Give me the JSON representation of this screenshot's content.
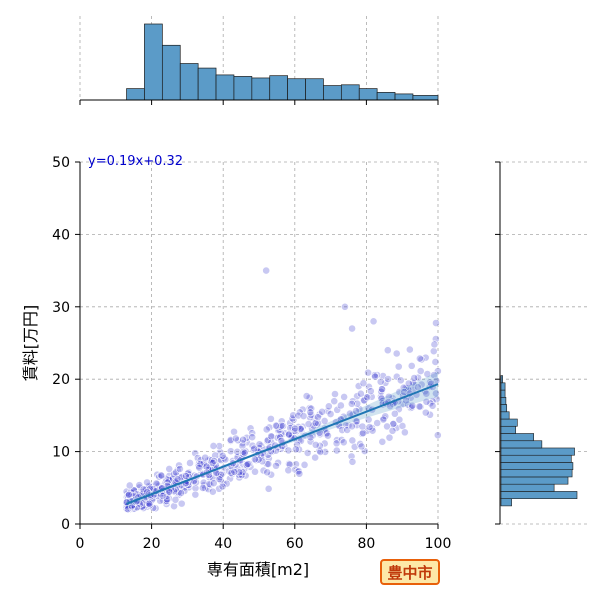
{
  "chart_data": [
    {
      "type": "scatter",
      "role": "main",
      "xlabel": "専有面積[m2]",
      "ylabel": "賃料[万円]",
      "xlim": [
        0,
        100
      ],
      "ylim": [
        0,
        50
      ],
      "xticks": [
        0,
        20,
        40,
        60,
        80,
        100
      ],
      "yticks": [
        0,
        10,
        20,
        30,
        40,
        50
      ],
      "grid": true,
      "regression": {
        "slope": 0.19,
        "intercept": 0.32,
        "label": "y=0.19x+0.32",
        "x_range": [
          13,
          100
        ]
      },
      "point_color": "#3a3ad0",
      "line_color": "#1f77b4",
      "notable_points": [
        [
          52,
          35
        ],
        [
          74,
          30
        ],
        [
          76,
          27
        ],
        [
          82,
          28
        ],
        [
          99,
          24.8
        ],
        [
          13,
          3
        ]
      ]
    },
    {
      "type": "bar",
      "role": "x-marginal-histogram",
      "bin_edges": [
        13,
        18,
        23,
        28,
        33,
        38,
        43,
        48,
        53,
        58,
        63,
        68,
        73,
        78,
        83,
        88,
        93,
        100
      ],
      "values": [
        0.15,
        1.0,
        0.72,
        0.48,
        0.42,
        0.33,
        0.31,
        0.29,
        0.32,
        0.28,
        0.28,
        0.19,
        0.2,
        0.15,
        0.1,
        0.08,
        0.06
      ],
      "color": "#5b9bc8"
    },
    {
      "type": "bar",
      "role": "y-marginal-histogram",
      "orientation": "horizontal",
      "bin_edges": [
        2.5,
        3.5,
        4.5,
        5.5,
        6.5,
        7.5,
        8.5,
        9.5,
        10.5,
        11.5,
        12.5,
        13.5,
        14.5,
        15.5,
        16.5,
        17.5,
        18.5,
        19.5,
        20.5
      ],
      "values": [
        0.13,
        0.93,
        0.65,
        0.82,
        0.87,
        0.88,
        0.86,
        0.9,
        0.5,
        0.4,
        0.18,
        0.2,
        0.1,
        0.07,
        0.06,
        0.05,
        0.05,
        0.02
      ],
      "color": "#5b9bc8"
    }
  ],
  "badge": {
    "label": "豊中市"
  }
}
